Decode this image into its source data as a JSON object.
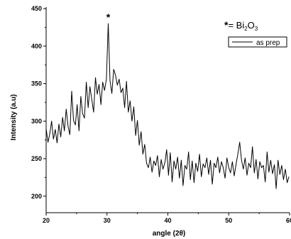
{
  "chart_data": {
    "type": "line",
    "title": "",
    "xlabel": "angle (2θ)",
    "ylabel": "Intensity (a.u)",
    "xlim": [
      20,
      60
    ],
    "ylim": [
      178,
      452
    ],
    "x_ticks": [
      20,
      30,
      40,
      50,
      60
    ],
    "y_ticks": [
      200,
      250,
      300,
      350,
      400,
      450
    ],
    "grid": false,
    "legend": {
      "position": "top-right",
      "entries": [
        "as prep"
      ]
    },
    "annotations": {
      "peak_marker": "*",
      "peak_x": 30.2,
      "key": {
        "star": "*",
        "equals": "= Bi",
        "sub1": "2",
        "o": "O",
        "sub2": "3"
      }
    },
    "series": [
      {
        "name": "as prep",
        "x": [
          20.0,
          20.3,
          20.6,
          20.9,
          21.2,
          21.5,
          21.8,
          22.1,
          22.4,
          22.7,
          23.0,
          23.3,
          23.6,
          23.9,
          24.2,
          24.5,
          24.8,
          25.1,
          25.4,
          25.7,
          26.0,
          26.3,
          26.6,
          26.9,
          27.2,
          27.5,
          27.8,
          28.1,
          28.4,
          28.7,
          29.0,
          29.3,
          29.6,
          29.9,
          30.2,
          30.5,
          30.8,
          31.1,
          31.4,
          31.7,
          32.0,
          32.3,
          32.6,
          32.9,
          33.2,
          33.5,
          33.8,
          34.1,
          34.4,
          34.7,
          35.0,
          35.3,
          35.6,
          35.9,
          36.2,
          36.5,
          36.8,
          37.1,
          37.4,
          37.7,
          38.0,
          38.3,
          38.6,
          38.9,
          39.2,
          39.5,
          39.8,
          40.1,
          40.4,
          40.7,
          41.0,
          41.3,
          41.6,
          41.9,
          42.2,
          42.5,
          42.8,
          43.1,
          43.4,
          43.7,
          44.0,
          44.3,
          44.6,
          44.9,
          45.2,
          45.5,
          45.8,
          46.1,
          46.4,
          46.7,
          47.0,
          47.3,
          47.6,
          47.9,
          48.2,
          48.5,
          48.8,
          49.1,
          49.4,
          49.7,
          50.0,
          50.3,
          50.6,
          50.9,
          51.2,
          51.5,
          51.8,
          52.1,
          52.4,
          52.7,
          53.0,
          53.3,
          53.6,
          53.9,
          54.2,
          54.5,
          54.8,
          55.1,
          55.4,
          55.7,
          56.0,
          56.3,
          56.6,
          56.9,
          57.2,
          57.5,
          57.8,
          58.1,
          58.4,
          58.7,
          59.0,
          59.3,
          59.6,
          59.9
        ],
        "y": [
          290,
          272,
          283,
          300,
          276,
          289,
          271,
          296,
          279,
          305,
          287,
          316,
          293,
          282,
          340,
          301,
          295,
          322,
          287,
          333,
          310,
          304,
          352,
          318,
          346,
          329,
          312,
          358,
          336,
          349,
          322,
          352,
          341,
          356,
          430,
          354,
          337,
          369,
          361,
          348,
          356,
          338,
          344,
          318,
          353,
          312,
          327,
          300,
          319,
          281,
          301,
          268,
          286,
          256,
          269,
          244,
          238,
          252,
          232,
          247,
          241,
          254,
          226,
          249,
          236,
          244,
          262,
          228,
          258,
          219,
          247,
          236,
          252,
          224,
          248,
          214,
          241,
          236,
          259,
          222,
          247,
          218,
          244,
          233,
          256,
          226,
          243,
          238,
          251,
          229,
          248,
          216,
          244,
          238,
          252,
          231,
          246,
          238,
          224,
          251,
          238,
          231,
          246,
          227,
          242,
          256,
          272,
          248,
          236,
          251,
          228,
          244,
          238,
          266,
          231,
          249,
          223,
          246,
          238,
          241,
          219,
          259,
          232,
          248,
          230,
          242,
          210,
          248,
          229,
          241,
          222,
          236,
          218,
          226
        ]
      }
    ]
  }
}
